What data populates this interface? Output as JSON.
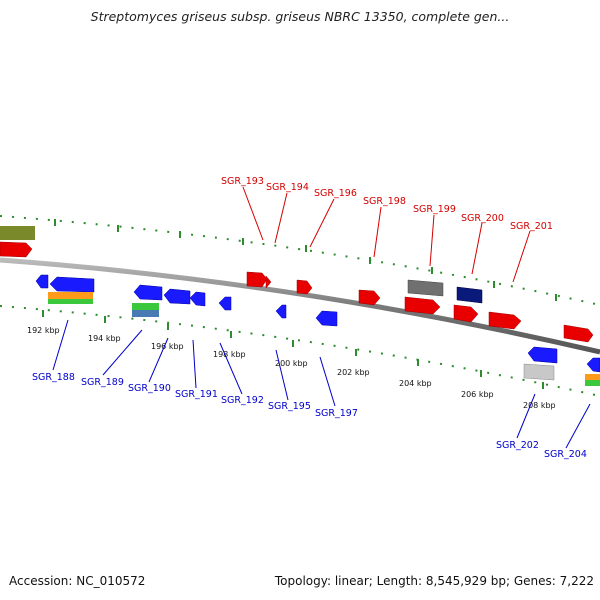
{
  "title": "Streptomyces griseus subsp. griseus NBRC 13350, complete gen...",
  "footer": {
    "accession": "Accession: NC_010572",
    "summary": "Topology: linear; Length: 8,545,929 bp; Genes: 7,222"
  },
  "colors": {
    "backbone": "#808080",
    "ruler": "#2e8b2e",
    "forward_gene": "#ff0000",
    "reverse_gene": "#0000ff",
    "forward_label": "#d40000",
    "reverse_label": "#0000cc",
    "other_feature": "#7a8a2a"
  },
  "scale": {
    "ticks": [
      {
        "label": "192 kbp"
      },
      {
        "label": "194 kbp"
      },
      {
        "label": "196 kbp"
      },
      {
        "label": "198 kbp"
      },
      {
        "label": "200 kbp"
      },
      {
        "label": "202 kbp"
      },
      {
        "label": "204 kbp"
      },
      {
        "label": "206 kbp"
      },
      {
        "label": "208 kbp"
      }
    ]
  },
  "genes": {
    "forward": [
      {
        "label": "SGR_193"
      },
      {
        "label": "SGR_194"
      },
      {
        "label": "SGR_196"
      },
      {
        "label": "SGR_198"
      },
      {
        "label": "SGR_199"
      },
      {
        "label": "SGR_200"
      },
      {
        "label": "SGR_201"
      }
    ],
    "reverse": [
      {
        "label": "SGR_188"
      },
      {
        "label": "SGR_189"
      },
      {
        "label": "SGR_190"
      },
      {
        "label": "SGR_191"
      },
      {
        "label": "SGR_192"
      },
      {
        "label": "SGR_195"
      },
      {
        "label": "SGR_197"
      },
      {
        "label": "SGR_202"
      },
      {
        "label": "SGR_204"
      }
    ]
  }
}
